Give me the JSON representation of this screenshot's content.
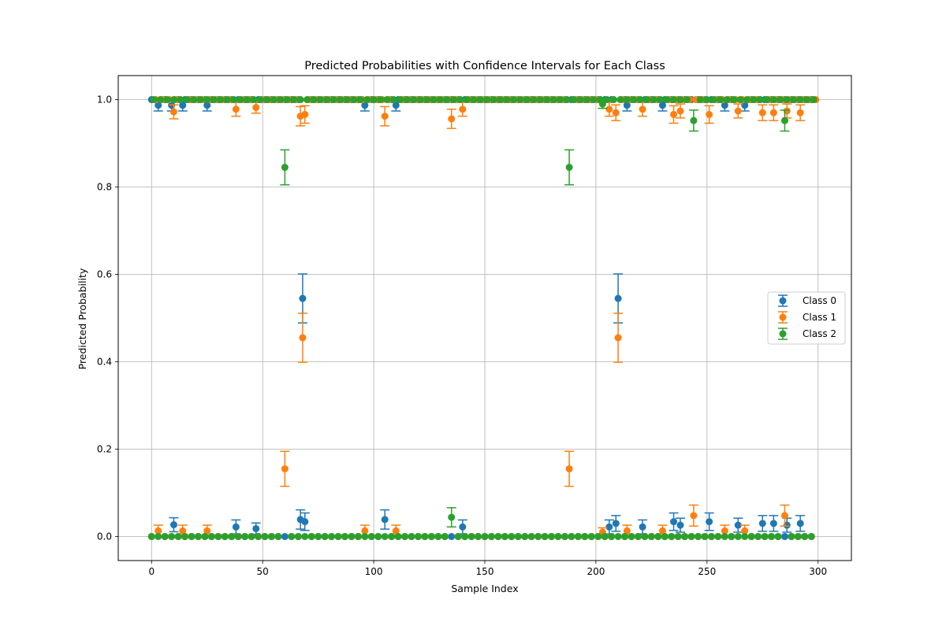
{
  "chart_data": {
    "type": "scatter",
    "title": "Predicted Probabilities with Confidence Intervals for Each Class",
    "xlabel": "Sample Index",
    "ylabel": "Predicted Probability",
    "xlim": [
      -15,
      315
    ],
    "ylim": [
      -0.055,
      1.055
    ],
    "xticks": [
      0,
      50,
      100,
      150,
      200,
      250,
      300
    ],
    "yticks": [
      0.0,
      0.2,
      0.4,
      0.6,
      0.8,
      1.0
    ],
    "xtick_labels": [
      "0",
      "50",
      "100",
      "150",
      "200",
      "250",
      "300"
    ],
    "ytick_labels": [
      "0.0",
      "0.2",
      "0.4",
      "0.6",
      "0.8",
      "1.0"
    ],
    "grid": true,
    "legend_position": "right",
    "error_bars": true,
    "series": [
      {
        "name": "Class 0",
        "color": "#1f77b4",
        "points": [
          {
            "x": 3,
            "y": 0.987,
            "err": 0.013
          },
          {
            "x": 9,
            "y": 0.987,
            "err": 0.013
          },
          {
            "x": 14,
            "y": 0.987,
            "err": 0.013
          },
          {
            "x": 25,
            "y": 0.987,
            "err": 0.013
          },
          {
            "x": 96,
            "y": 0.987,
            "err": 0.013
          },
          {
            "x": 110,
            "y": 0.987,
            "err": 0.013
          },
          {
            "x": 214,
            "y": 0.987,
            "err": 0.013
          },
          {
            "x": 230,
            "y": 0.987,
            "err": 0.013
          },
          {
            "x": 258,
            "y": 0.987,
            "err": 0.013
          },
          {
            "x": 267,
            "y": 0.987,
            "err": 0.013
          },
          {
            "x": 10,
            "y": 0.027,
            "err": 0.016
          },
          {
            "x": 38,
            "y": 0.022,
            "err": 0.016
          },
          {
            "x": 47,
            "y": 0.018,
            "err": 0.013
          },
          {
            "x": 67,
            "y": 0.039,
            "err": 0.022
          },
          {
            "x": 69,
            "y": 0.034,
            "err": 0.02
          },
          {
            "x": 105,
            "y": 0.039,
            "err": 0.022
          },
          {
            "x": 140,
            "y": 0.022,
            "err": 0.016
          },
          {
            "x": 206,
            "y": 0.022,
            "err": 0.016
          },
          {
            "x": 209,
            "y": 0.03,
            "err": 0.018
          },
          {
            "x": 221,
            "y": 0.022,
            "err": 0.016
          },
          {
            "x": 235,
            "y": 0.034,
            "err": 0.02
          },
          {
            "x": 238,
            "y": 0.026,
            "err": 0.016
          },
          {
            "x": 251,
            "y": 0.034,
            "err": 0.02
          },
          {
            "x": 264,
            "y": 0.026,
            "err": 0.016
          },
          {
            "x": 275,
            "y": 0.03,
            "err": 0.018
          },
          {
            "x": 280,
            "y": 0.03,
            "err": 0.018
          },
          {
            "x": 286,
            "y": 0.026,
            "err": 0.016
          },
          {
            "x": 292,
            "y": 0.03,
            "err": 0.018
          },
          {
            "x": 68,
            "y": 0.545,
            "err": 0.056
          },
          {
            "x": 210,
            "y": 0.545,
            "err": 0.056
          }
        ]
      },
      {
        "name": "Class 1",
        "color": "#ff7f0e",
        "points": [
          {
            "x": 10,
            "y": 0.972,
            "err": 0.016
          },
          {
            "x": 38,
            "y": 0.978,
            "err": 0.016
          },
          {
            "x": 47,
            "y": 0.982,
            "err": 0.013
          },
          {
            "x": 67,
            "y": 0.962,
            "err": 0.022
          },
          {
            "x": 69,
            "y": 0.966,
            "err": 0.02
          },
          {
            "x": 105,
            "y": 0.962,
            "err": 0.022
          },
          {
            "x": 135,
            "y": 0.956,
            "err": 0.022
          },
          {
            "x": 140,
            "y": 0.978,
            "err": 0.016
          },
          {
            "x": 206,
            "y": 0.978,
            "err": 0.016
          },
          {
            "x": 209,
            "y": 0.97,
            "err": 0.018
          },
          {
            "x": 221,
            "y": 0.978,
            "err": 0.016
          },
          {
            "x": 235,
            "y": 0.966,
            "err": 0.02
          },
          {
            "x": 238,
            "y": 0.974,
            "err": 0.016
          },
          {
            "x": 251,
            "y": 0.966,
            "err": 0.02
          },
          {
            "x": 264,
            "y": 0.974,
            "err": 0.016
          },
          {
            "x": 275,
            "y": 0.97,
            "err": 0.018
          },
          {
            "x": 280,
            "y": 0.97,
            "err": 0.018
          },
          {
            "x": 286,
            "y": 0.974,
            "err": 0.016
          },
          {
            "x": 292,
            "y": 0.97,
            "err": 0.018
          },
          {
            "x": 3,
            "y": 0.013,
            "err": 0.013
          },
          {
            "x": 14,
            "y": 0.013,
            "err": 0.013
          },
          {
            "x": 25,
            "y": 0.013,
            "err": 0.013
          },
          {
            "x": 96,
            "y": 0.013,
            "err": 0.013
          },
          {
            "x": 110,
            "y": 0.013,
            "err": 0.013
          },
          {
            "x": 203,
            "y": 0.01,
            "err": 0.01
          },
          {
            "x": 214,
            "y": 0.013,
            "err": 0.013
          },
          {
            "x": 230,
            "y": 0.013,
            "err": 0.013
          },
          {
            "x": 244,
            "y": 0.048,
            "err": 0.024
          },
          {
            "x": 258,
            "y": 0.013,
            "err": 0.013
          },
          {
            "x": 267,
            "y": 0.013,
            "err": 0.013
          },
          {
            "x": 285,
            "y": 0.048,
            "err": 0.024
          },
          {
            "x": 60,
            "y": 0.155,
            "err": 0.04
          },
          {
            "x": 188,
            "y": 0.155,
            "err": 0.04
          },
          {
            "x": 68,
            "y": 0.455,
            "err": 0.056
          },
          {
            "x": 210,
            "y": 0.455,
            "err": 0.056
          }
        ]
      },
      {
        "name": "Class 2",
        "color": "#2ca02c",
        "points": [
          {
            "x": 60,
            "y": 0.845,
            "err": 0.04
          },
          {
            "x": 188,
            "y": 0.845,
            "err": 0.04
          },
          {
            "x": 203,
            "y": 0.99,
            "err": 0.01
          },
          {
            "x": 244,
            "y": 0.952,
            "err": 0.024
          },
          {
            "x": 285,
            "y": 0.952,
            "err": 0.024
          },
          {
            "x": 135,
            "y": 0.044,
            "err": 0.022
          }
        ]
      }
    ],
    "dense_fill": [
      {
        "name": "Class 0",
        "low_range": [
          0,
          299
        ],
        "high_range": [
          0,
          299
        ]
      },
      {
        "name": "Class 1",
        "low_range": [
          0,
          299
        ],
        "high_range": [
          0,
          299
        ]
      },
      {
        "name": "Class 2",
        "low_range": [
          0,
          299
        ],
        "high_range": [
          0,
          299
        ]
      }
    ]
  }
}
